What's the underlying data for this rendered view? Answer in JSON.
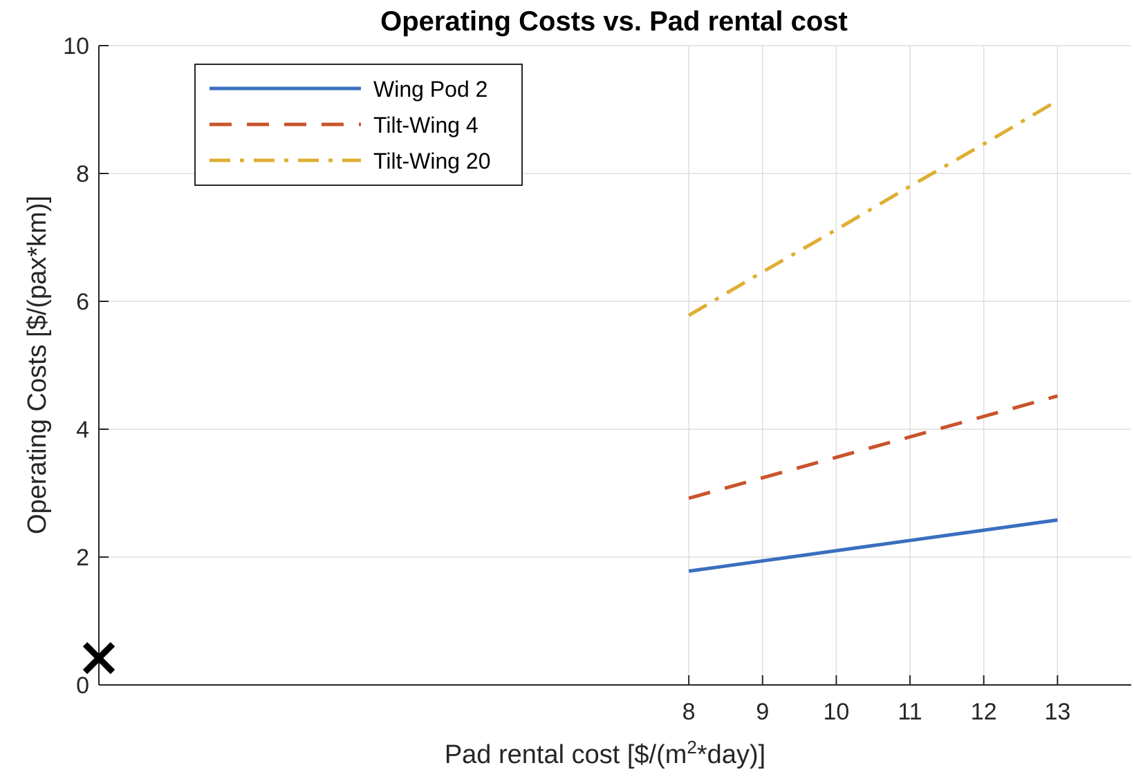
{
  "chart_data": {
    "type": "line",
    "title": "Operating Costs vs. Pad rental cost",
    "xlabel_pre": "Pad rental cost [$/(m",
    "xlabel_sup": "2",
    "xlabel_post": "*day)]",
    "ylabel": "Operating Costs [$/(pax*km)]",
    "xlim": [
      0,
      14
    ],
    "ylim": [
      0,
      10
    ],
    "x_ticks": [
      "8",
      "9",
      "10",
      "11",
      "12",
      "13"
    ],
    "y_ticks": [
      "0",
      "2",
      "4",
      "6",
      "8",
      "10"
    ],
    "grid": true,
    "legend_position": "top-left",
    "series": [
      {
        "name": "Wing Pod 2",
        "color": "#3a6fbf",
        "style": "solid",
        "x": [
          8,
          9,
          10,
          11,
          12,
          13
        ],
        "y": [
          1.78,
          1.94,
          2.1,
          2.26,
          2.42,
          2.58
        ]
      },
      {
        "name": "Tilt-Wing 4",
        "color": "#c8542a",
        "style": "dashed",
        "x": [
          8,
          9,
          10,
          11,
          12,
          13
        ],
        "y": [
          2.92,
          3.24,
          3.56,
          3.88,
          4.2,
          4.52
        ]
      },
      {
        "name": "Tilt-Wing 20",
        "color": "#dfae33",
        "style": "dashdot",
        "x": [
          8,
          9,
          10,
          11,
          12,
          13
        ],
        "y": [
          5.78,
          6.46,
          7.12,
          7.8,
          8.46,
          9.14
        ]
      }
    ],
    "markers": [
      {
        "symbol": "x",
        "color": "#000000",
        "x": 0,
        "y": 0.42
      }
    ]
  }
}
